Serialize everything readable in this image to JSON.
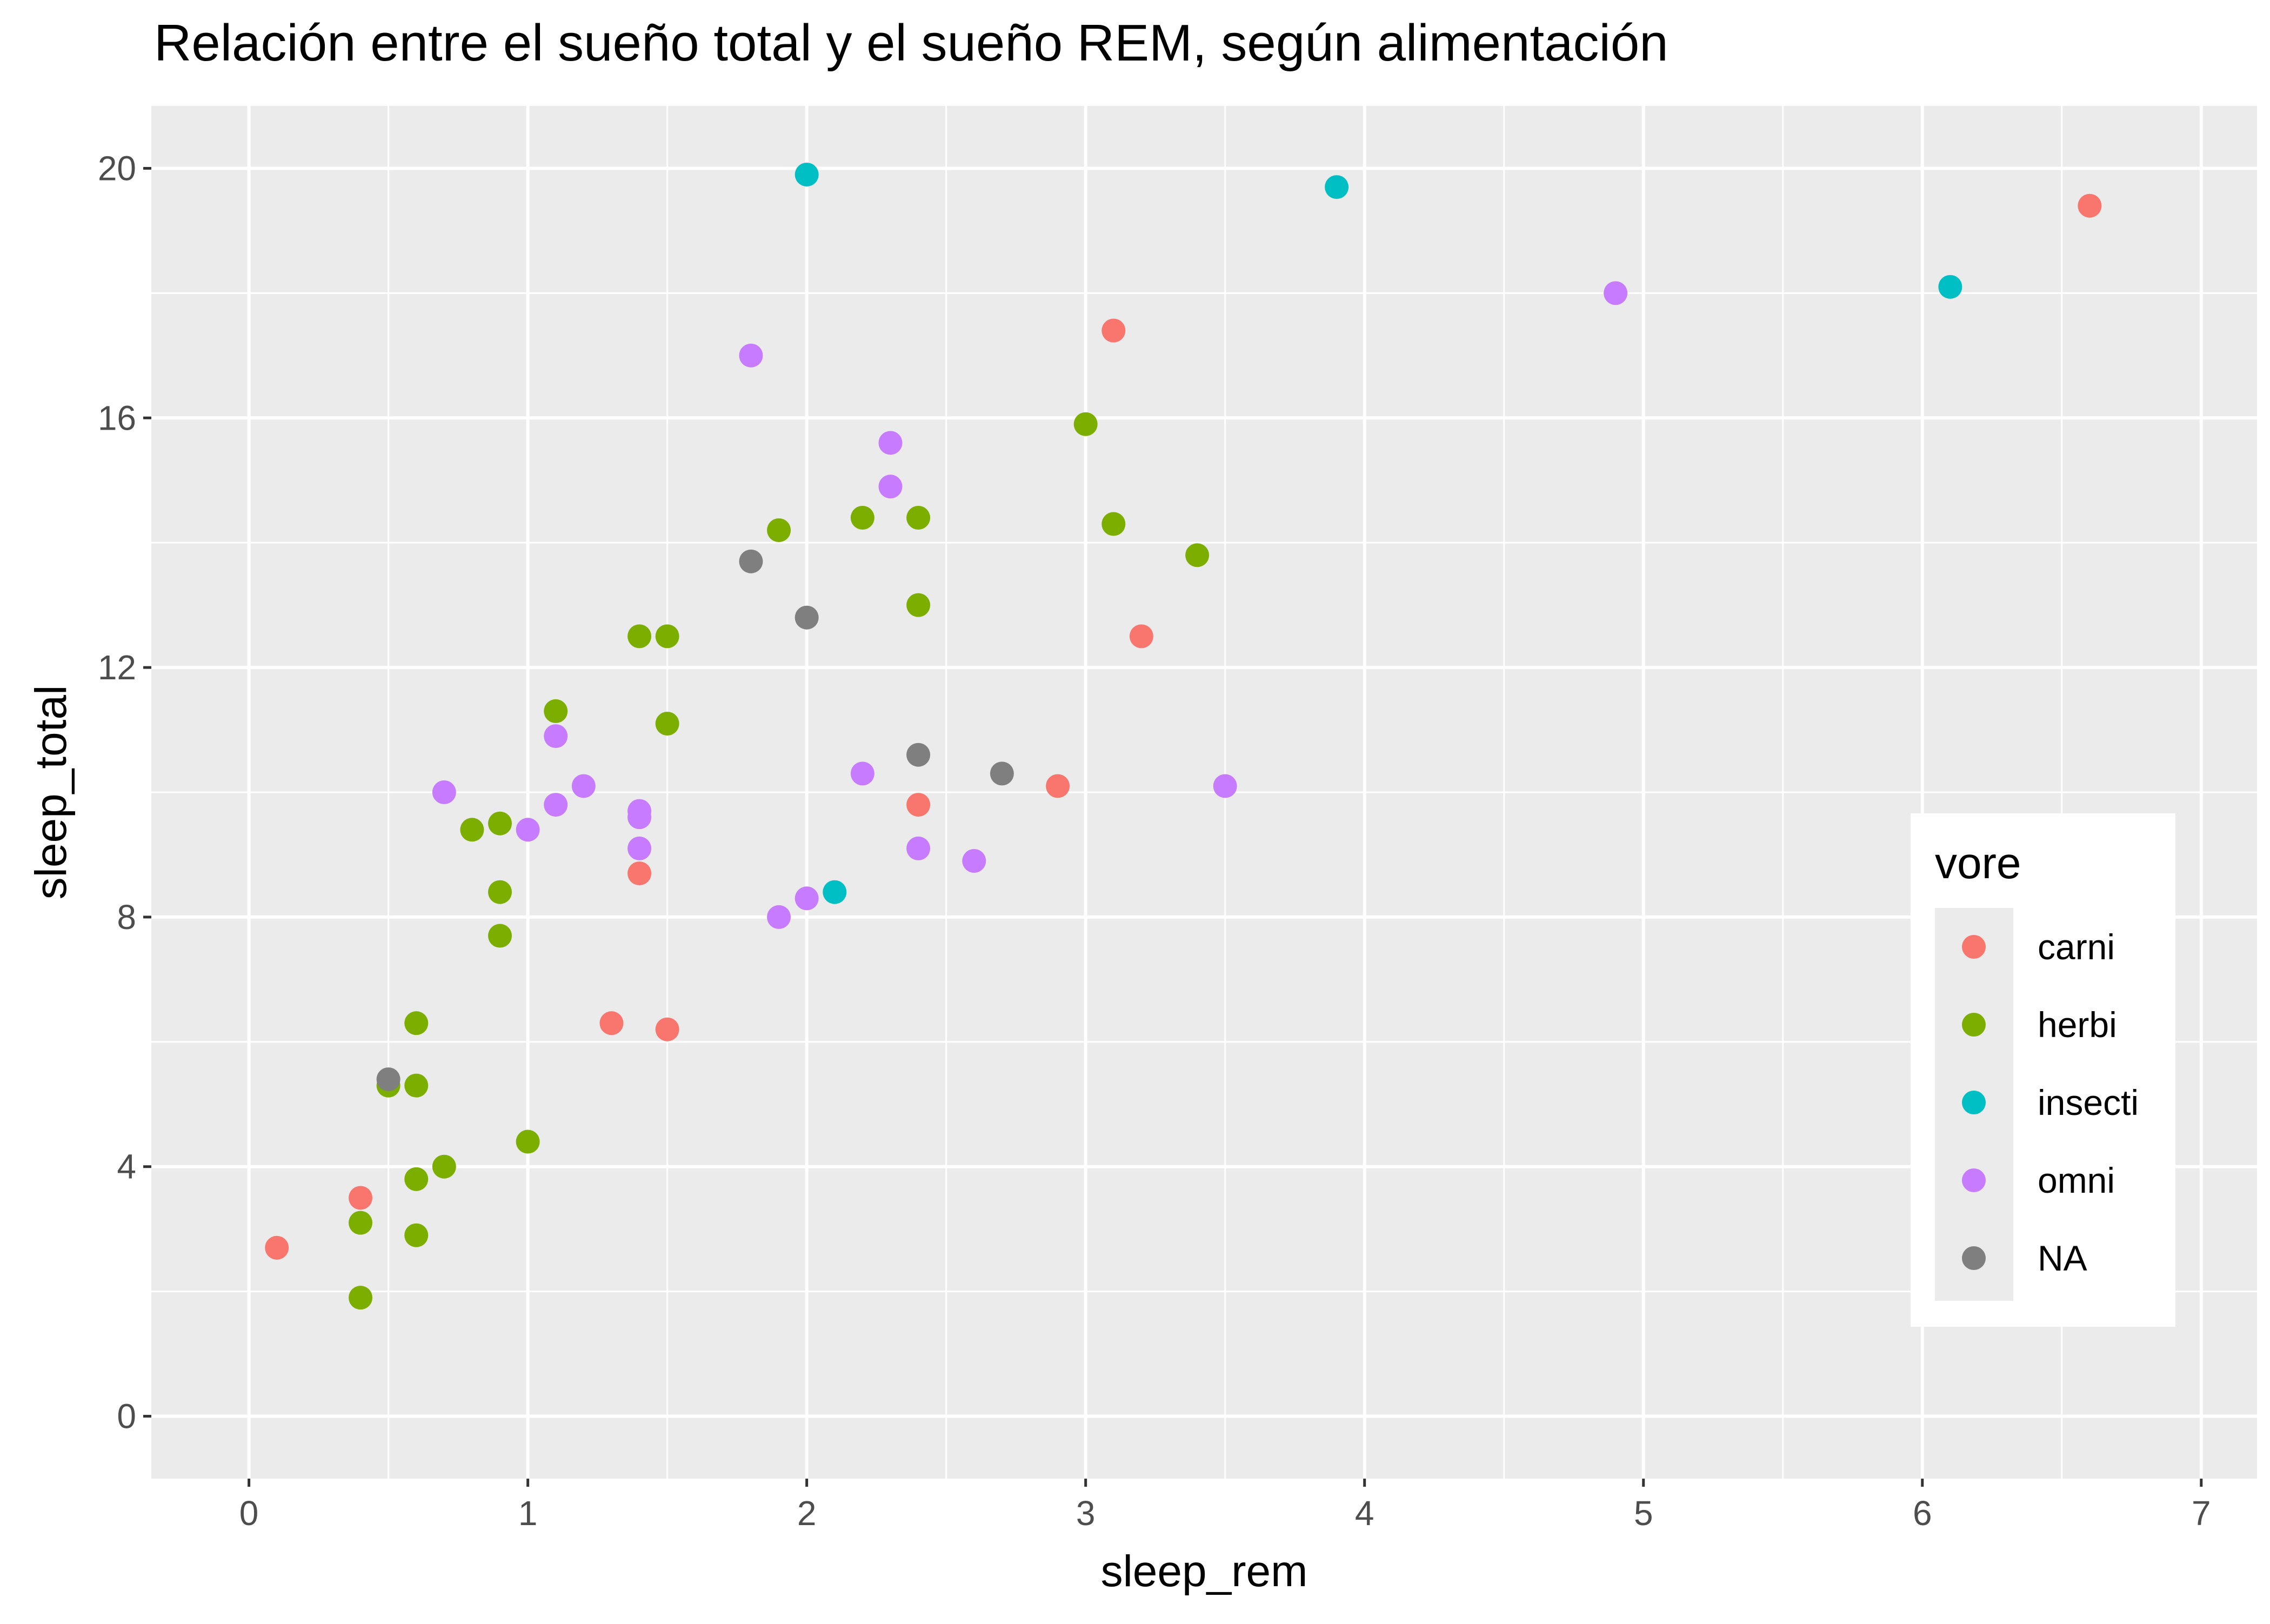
{
  "chart_data": {
    "type": "scatter",
    "title": "Relación entre el sueño total y el sueño REM, según alimentación",
    "xlabel": "sleep_rem",
    "ylabel": "sleep_total",
    "xlim": [
      -0.35,
      7.2
    ],
    "ylim": [
      -1,
      21
    ],
    "x_ticks": [
      0,
      1,
      2,
      3,
      4,
      5,
      6,
      7
    ],
    "y_ticks": [
      0,
      4,
      8,
      12,
      16,
      20
    ],
    "grid": true,
    "legend": {
      "title": "vore",
      "placement": "right-middle",
      "entries": [
        {
          "label": "carni",
          "color": "#F8766D"
        },
        {
          "label": "herbi",
          "color": "#7CAE00"
        },
        {
          "label": "insecti",
          "color": "#00BFC4"
        },
        {
          "label": "omni",
          "color": "#C77CFF"
        },
        {
          "label": "NA",
          "color": "#7F7F7F"
        }
      ]
    },
    "series": [
      {
        "name": "carni",
        "color": "#F8766D",
        "points": [
          [
            0.1,
            2.7
          ],
          [
            0.4,
            3.5
          ],
          [
            1.3,
            6.3
          ],
          [
            1.5,
            6.2
          ],
          [
            1.4,
            8.7
          ],
          [
            2.4,
            9.8
          ],
          [
            2.9,
            10.1
          ],
          [
            3.2,
            12.5
          ],
          [
            3.1,
            17.4
          ],
          [
            6.6,
            19.4
          ]
        ]
      },
      {
        "name": "herbi",
        "color": "#7CAE00",
        "points": [
          [
            0.4,
            1.9
          ],
          [
            0.4,
            3.1
          ],
          [
            0.6,
            2.9
          ],
          [
            0.6,
            3.8
          ],
          [
            0.7,
            4.0
          ],
          [
            1.0,
            4.4
          ],
          [
            0.5,
            5.3
          ],
          [
            0.6,
            5.3
          ],
          [
            0.6,
            6.3
          ],
          [
            0.9,
            7.7
          ],
          [
            0.9,
            8.4
          ],
          [
            0.8,
            9.4
          ],
          [
            0.9,
            9.5
          ],
          [
            1.1,
            11.3
          ],
          [
            1.5,
            11.1
          ],
          [
            1.4,
            12.5
          ],
          [
            1.5,
            12.5
          ],
          [
            1.9,
            14.2
          ],
          [
            2.2,
            14.4
          ],
          [
            2.4,
            14.4
          ],
          [
            2.4,
            13.0
          ],
          [
            3.0,
            15.9
          ],
          [
            3.1,
            14.3
          ],
          [
            3.4,
            13.8
          ]
        ]
      },
      {
        "name": "insecti",
        "color": "#00BFC4",
        "points": [
          [
            2.0,
            19.9
          ],
          [
            3.9,
            19.7
          ],
          [
            6.1,
            18.1
          ],
          [
            2.1,
            8.4
          ]
        ]
      },
      {
        "name": "omni",
        "color": "#C77CFF",
        "points": [
          [
            0.7,
            10.0
          ],
          [
            1.0,
            9.4
          ],
          [
            1.1,
            9.8
          ],
          [
            1.1,
            10.9
          ],
          [
            1.2,
            10.1
          ],
          [
            1.4,
            9.7
          ],
          [
            1.4,
            9.6
          ],
          [
            1.4,
            9.1
          ],
          [
            1.8,
            17.0
          ],
          [
            1.9,
            8.0
          ],
          [
            2.0,
            8.3
          ],
          [
            2.2,
            10.3
          ],
          [
            2.3,
            15.6
          ],
          [
            2.3,
            14.9
          ],
          [
            2.4,
            9.1
          ],
          [
            2.6,
            8.9
          ],
          [
            3.5,
            10.1
          ],
          [
            4.9,
            18.0
          ]
        ]
      },
      {
        "name": "NA",
        "color": "#7F7F7F",
        "points": [
          [
            0.5,
            5.4
          ],
          [
            1.8,
            13.7
          ],
          [
            2.0,
            12.8
          ],
          [
            2.4,
            10.6
          ],
          [
            2.7,
            10.3
          ]
        ]
      }
    ]
  }
}
